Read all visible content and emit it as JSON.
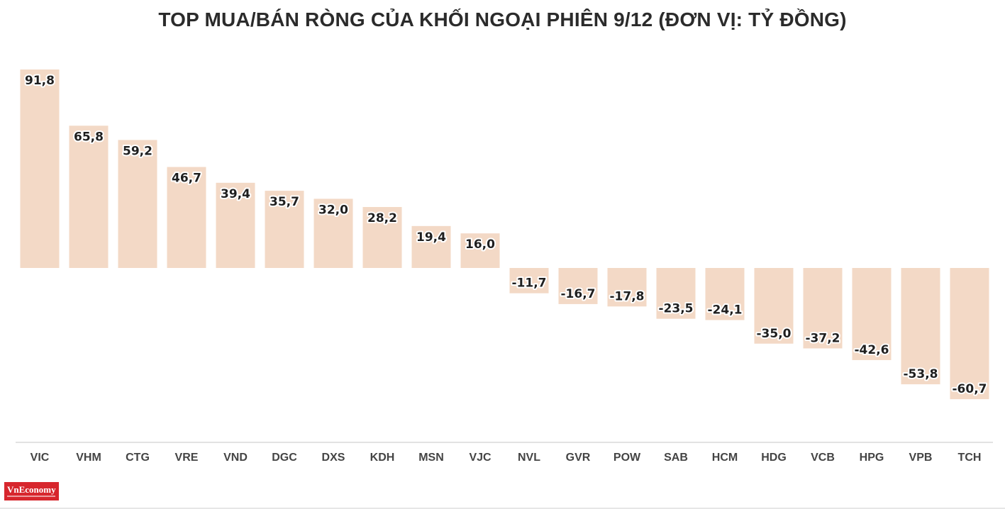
{
  "brand": {
    "name": "VnEconomy"
  },
  "colors": {
    "bar": "#f3d9c6",
    "text": "#2b2b2b",
    "axis": "#d9d9d9"
  },
  "chart_data": {
    "type": "bar",
    "title": "TOP MUA/BÁN RÒNG CỦA KHỐI NGOẠI PHIÊN 9/12 (ĐƠN VỊ: TỶ ĐỒNG)",
    "xlabel": "",
    "ylabel": "",
    "grid": false,
    "ylim": [
      -77,
      98
    ],
    "categories": [
      "VIC",
      "VHM",
      "CTG",
      "VRE",
      "VND",
      "DGC",
      "DXS",
      "KDH",
      "MSN",
      "VJC",
      "NVL",
      "GVR",
      "POW",
      "SAB",
      "HCM",
      "HDG",
      "VCB",
      "HPG",
      "VPB",
      "TCH"
    ],
    "values": [
      91.8,
      65.8,
      59.2,
      46.7,
      39.4,
      35.7,
      32.0,
      28.2,
      19.4,
      16.0,
      -11.7,
      -16.7,
      -17.8,
      -23.5,
      -24.1,
      -35.0,
      -37.2,
      -42.6,
      -53.8,
      -60.7
    ],
    "value_labels": [
      "91,8",
      "65,8",
      "59,2",
      "46,7",
      "39,4",
      "35,7",
      "32,0",
      "28,2",
      "19,4",
      "16,0",
      "-11,7",
      "-16,7",
      "-17,8",
      "-23,5",
      "-24,1",
      "-35,0",
      "-37,2",
      "-42,6",
      "-53,8",
      "-60,7"
    ]
  }
}
